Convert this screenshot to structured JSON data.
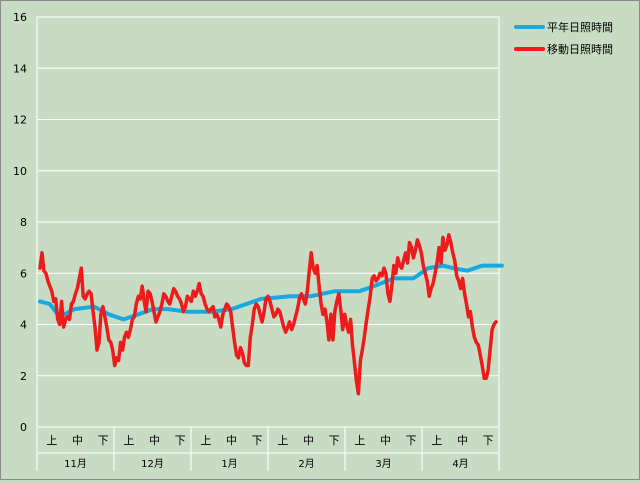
{
  "chart_data": {
    "type": "line",
    "ylim": [
      0,
      16
    ],
    "yticks": [
      0,
      2,
      4,
      6,
      8,
      10,
      12,
      14,
      16
    ],
    "grid": true,
    "legend_position": "top-right",
    "months": [
      "11月",
      "12月",
      "1月",
      "2月",
      "3月",
      "4月"
    ],
    "periods": [
      "上",
      "中",
      "下"
    ],
    "day_count": 181,
    "series": [
      {
        "name": "平年日照時間",
        "color": "#17a9e1",
        "points": [
          [
            0,
            4.9
          ],
          [
            10,
            4.8
          ],
          [
            20,
            4.3
          ],
          [
            35,
            4.6
          ],
          [
            55,
            4.7
          ],
          [
            70,
            4.4
          ],
          [
            85,
            4.2
          ],
          [
            100,
            4.4
          ],
          [
            115,
            4.6
          ],
          [
            130,
            4.6
          ],
          [
            150,
            4.5
          ],
          [
            175,
            4.5
          ],
          [
            195,
            4.6
          ],
          [
            210,
            4.8
          ],
          [
            225,
            5.0
          ],
          [
            255,
            5.1
          ],
          [
            275,
            5.1
          ],
          [
            300,
            5.3
          ],
          [
            325,
            5.3
          ],
          [
            340,
            5.5
          ],
          [
            360,
            5.8
          ],
          [
            380,
            5.8
          ],
          [
            395,
            6.2
          ],
          [
            410,
            6.3
          ],
          [
            420,
            6.2
          ],
          [
            435,
            6.1
          ],
          [
            450,
            6.3
          ],
          [
            470,
            6.3
          ]
        ]
      },
      {
        "name": "移動日照時間",
        "color": "#ec1c1c",
        "points": [
          [
            0,
            6.2
          ],
          [
            2,
            6.8
          ],
          [
            4,
            6.1
          ],
          [
            6,
            6.0
          ],
          [
            8,
            5.7
          ],
          [
            10,
            5.5
          ],
          [
            12,
            5.3
          ],
          [
            14,
            4.9
          ],
          [
            16,
            5.0
          ],
          [
            18,
            4.2
          ],
          [
            20,
            4.0
          ],
          [
            22,
            4.9
          ],
          [
            24,
            3.9
          ],
          [
            26,
            4.2
          ],
          [
            28,
            4.3
          ],
          [
            30,
            4.2
          ],
          [
            32,
            4.8
          ],
          [
            34,
            4.9
          ],
          [
            36,
            5.2
          ],
          [
            38,
            5.4
          ],
          [
            40,
            5.8
          ],
          [
            42,
            6.2
          ],
          [
            44,
            5.1
          ],
          [
            46,
            5.0
          ],
          [
            48,
            5.2
          ],
          [
            50,
            5.3
          ],
          [
            52,
            5.2
          ],
          [
            54,
            4.5
          ],
          [
            56,
            3.9
          ],
          [
            58,
            3.0
          ],
          [
            60,
            3.3
          ],
          [
            62,
            4.4
          ],
          [
            64,
            4.7
          ],
          [
            66,
            4.3
          ],
          [
            68,
            3.9
          ],
          [
            70,
            3.4
          ],
          [
            72,
            3.3
          ],
          [
            74,
            3.0
          ],
          [
            76,
            2.4
          ],
          [
            78,
            2.7
          ],
          [
            80,
            2.6
          ],
          [
            82,
            3.3
          ],
          [
            84,
            3.0
          ],
          [
            86,
            3.5
          ],
          [
            88,
            3.7
          ],
          [
            90,
            3.5
          ],
          [
            92,
            3.8
          ],
          [
            94,
            4.2
          ],
          [
            96,
            4.3
          ],
          [
            98,
            4.8
          ],
          [
            100,
            5.1
          ],
          [
            102,
            5.0
          ],
          [
            104,
            5.5
          ],
          [
            106,
            4.9
          ],
          [
            108,
            4.5
          ],
          [
            110,
            5.3
          ],
          [
            112,
            5.2
          ],
          [
            114,
            4.9
          ],
          [
            116,
            4.5
          ],
          [
            118,
            4.1
          ],
          [
            120,
            4.3
          ],
          [
            122,
            4.5
          ],
          [
            124,
            4.8
          ],
          [
            126,
            5.2
          ],
          [
            128,
            5.1
          ],
          [
            130,
            4.9
          ],
          [
            132,
            4.8
          ],
          [
            134,
            5.1
          ],
          [
            136,
            5.4
          ],
          [
            138,
            5.3
          ],
          [
            140,
            5.1
          ],
          [
            142,
            5.0
          ],
          [
            144,
            4.8
          ],
          [
            146,
            4.5
          ],
          [
            148,
            4.7
          ],
          [
            150,
            5.1
          ],
          [
            152,
            5.0
          ],
          [
            154,
            4.9
          ],
          [
            156,
            5.3
          ],
          [
            158,
            5.1
          ],
          [
            160,
            5.3
          ],
          [
            162,
            5.6
          ],
          [
            164,
            5.2
          ],
          [
            166,
            5.1
          ],
          [
            168,
            4.8
          ],
          [
            170,
            4.6
          ],
          [
            172,
            4.5
          ],
          [
            174,
            4.6
          ],
          [
            176,
            4.7
          ],
          [
            178,
            4.3
          ],
          [
            180,
            4.4
          ],
          [
            182,
            4.2
          ],
          [
            184,
            3.9
          ],
          [
            186,
            4.4
          ],
          [
            188,
            4.6
          ],
          [
            190,
            4.8
          ],
          [
            192,
            4.7
          ],
          [
            194,
            4.5
          ],
          [
            196,
            3.9
          ],
          [
            198,
            3.3
          ],
          [
            200,
            2.8
          ],
          [
            202,
            2.7
          ],
          [
            204,
            3.1
          ],
          [
            206,
            2.9
          ],
          [
            208,
            2.5
          ],
          [
            210,
            2.4
          ],
          [
            212,
            2.4
          ],
          [
            214,
            3.5
          ],
          [
            216,
            4.0
          ],
          [
            218,
            4.6
          ],
          [
            220,
            4.8
          ],
          [
            222,
            4.7
          ],
          [
            224,
            4.4
          ],
          [
            226,
            4.1
          ],
          [
            228,
            4.5
          ],
          [
            230,
            5.0
          ],
          [
            232,
            5.1
          ],
          [
            234,
            4.9
          ],
          [
            236,
            4.6
          ],
          [
            238,
            4.3
          ],
          [
            240,
            4.4
          ],
          [
            242,
            4.6
          ],
          [
            244,
            4.5
          ],
          [
            246,
            4.2
          ],
          [
            248,
            3.9
          ],
          [
            250,
            3.7
          ],
          [
            252,
            3.9
          ],
          [
            254,
            4.1
          ],
          [
            256,
            3.8
          ],
          [
            258,
            4.0
          ],
          [
            260,
            4.3
          ],
          [
            262,
            4.6
          ],
          [
            264,
            5.0
          ],
          [
            266,
            5.2
          ],
          [
            268,
            5.0
          ],
          [
            270,
            4.8
          ],
          [
            272,
            5.3
          ],
          [
            274,
            6.1
          ],
          [
            276,
            6.8
          ],
          [
            278,
            6.2
          ],
          [
            280,
            6.0
          ],
          [
            282,
            6.3
          ],
          [
            284,
            5.5
          ],
          [
            286,
            4.8
          ],
          [
            288,
            4.4
          ],
          [
            290,
            4.6
          ],
          [
            292,
            4.1
          ],
          [
            294,
            3.4
          ],
          [
            296,
            4.4
          ],
          [
            298,
            3.4
          ],
          [
            300,
            4.5
          ],
          [
            302,
            4.9
          ],
          [
            304,
            5.2
          ],
          [
            306,
            4.6
          ],
          [
            308,
            3.8
          ],
          [
            310,
            4.4
          ],
          [
            312,
            4.0
          ],
          [
            314,
            3.7
          ],
          [
            316,
            4.2
          ],
          [
            318,
            3.2
          ],
          [
            320,
            2.5
          ],
          [
            322,
            1.8
          ],
          [
            324,
            1.3
          ],
          [
            326,
            2.6
          ],
          [
            328,
            3.0
          ],
          [
            330,
            3.5
          ],
          [
            332,
            4.1
          ],
          [
            334,
            4.6
          ],
          [
            336,
            5.1
          ],
          [
            338,
            5.8
          ],
          [
            340,
            5.9
          ],
          [
            342,
            5.7
          ],
          [
            344,
            5.8
          ],
          [
            346,
            6.0
          ],
          [
            348,
            5.9
          ],
          [
            350,
            6.2
          ],
          [
            352,
            6.0
          ],
          [
            354,
            5.2
          ],
          [
            356,
            4.9
          ],
          [
            358,
            5.5
          ],
          [
            360,
            6.3
          ],
          [
            362,
            6.0
          ],
          [
            364,
            6.6
          ],
          [
            366,
            6.3
          ],
          [
            368,
            6.2
          ],
          [
            370,
            6.5
          ],
          [
            372,
            6.8
          ],
          [
            374,
            6.4
          ],
          [
            376,
            7.2
          ],
          [
            378,
            7.0
          ],
          [
            380,
            6.6
          ],
          [
            382,
            6.9
          ],
          [
            384,
            7.3
          ],
          [
            386,
            7.1
          ],
          [
            388,
            6.8
          ],
          [
            390,
            6.3
          ],
          [
            392,
            6.0
          ],
          [
            394,
            5.7
          ],
          [
            396,
            5.1
          ],
          [
            398,
            5.4
          ],
          [
            400,
            5.6
          ],
          [
            402,
            6.0
          ],
          [
            404,
            6.4
          ],
          [
            406,
            7.0
          ],
          [
            408,
            6.4
          ],
          [
            410,
            7.4
          ],
          [
            412,
            6.9
          ],
          [
            414,
            7.1
          ],
          [
            416,
            7.5
          ],
          [
            418,
            7.2
          ],
          [
            420,
            6.8
          ],
          [
            422,
            6.5
          ],
          [
            424,
            5.9
          ],
          [
            426,
            5.7
          ],
          [
            428,
            5.4
          ],
          [
            430,
            5.8
          ],
          [
            432,
            5.2
          ],
          [
            434,
            4.8
          ],
          [
            436,
            4.3
          ],
          [
            438,
            4.5
          ],
          [
            440,
            3.9
          ],
          [
            442,
            3.5
          ],
          [
            444,
            3.3
          ],
          [
            446,
            3.2
          ],
          [
            448,
            2.8
          ],
          [
            450,
            2.4
          ],
          [
            452,
            1.9
          ],
          [
            454,
            1.9
          ],
          [
            456,
            2.2
          ],
          [
            458,
            3.0
          ],
          [
            460,
            3.8
          ],
          [
            462,
            4.0
          ],
          [
            464,
            4.1
          ]
        ]
      }
    ]
  }
}
